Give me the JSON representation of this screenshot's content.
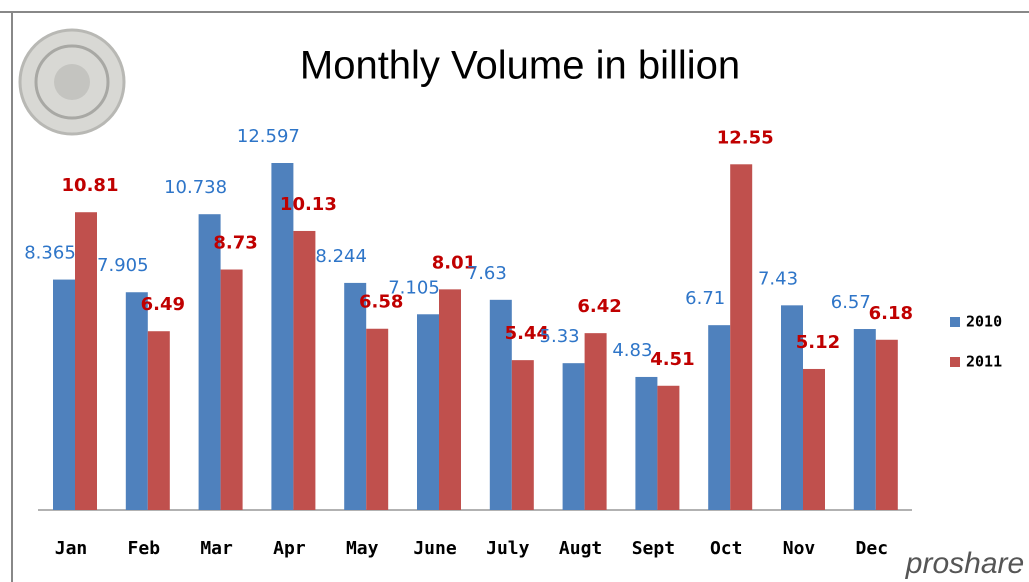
{
  "chart_data": {
    "type": "bar",
    "title": "Monthly Volume in billion",
    "categories": [
      "Jan",
      "Feb",
      "Mar",
      "Apr",
      "May",
      "June",
      "July",
      "Augt",
      "Sept",
      "Oct",
      "Nov",
      "Dec"
    ],
    "series": [
      {
        "name": "2010",
        "color": "#4f81bd",
        "label_color": "#2e75c8",
        "values": [
          8.365,
          7.905,
          10.738,
          12.597,
          8.244,
          7.105,
          7.63,
          5.33,
          4.83,
          6.71,
          7.43,
          6.57
        ]
      },
      {
        "name": "2011",
        "color": "#c0504d",
        "label_color": "#c00000",
        "values": [
          10.81,
          6.49,
          8.73,
          10.13,
          6.58,
          8.01,
          5.44,
          6.42,
          4.51,
          12.55,
          5.12,
          6.18
        ]
      }
    ],
    "legend": "right",
    "logo_text": "proshare"
  }
}
